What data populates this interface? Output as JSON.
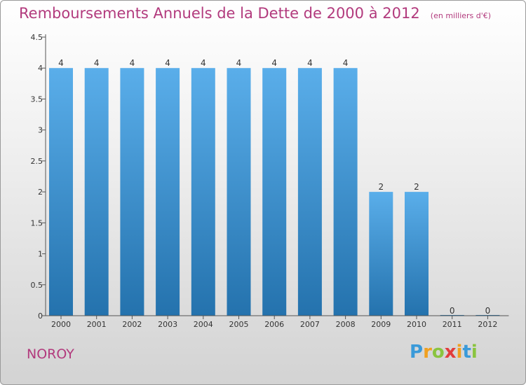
{
  "chart_title": "Remboursements Annuels de la Dette de 2000 à 2012",
  "chart_subtitle": "(en milliers d'€)",
  "commune": "NOROY",
  "logo": {
    "letters": [
      "P",
      "r",
      "o",
      "x",
      "i",
      "t",
      "i"
    ],
    "colors": [
      "#3a9ad9",
      "#f0a020",
      "#8ac43f",
      "#e23c3c",
      "#f0a020",
      "#3a9ad9",
      "#8ac43f"
    ]
  },
  "colors": {
    "title": "#b23a7d",
    "bar_top": "#5aaeea",
    "bar_bottom": "#2472ad"
  },
  "chart_data": {
    "type": "bar",
    "title": "Remboursements Annuels de la Dette de 2000 à 2012",
    "subtitle": "(en milliers d'€)",
    "xlabel": "",
    "ylabel": "",
    "categories": [
      "2000",
      "2001",
      "2002",
      "2003",
      "2004",
      "2005",
      "2006",
      "2007",
      "2008",
      "2009",
      "2010",
      "2011",
      "2012"
    ],
    "values": [
      4,
      4,
      4,
      4,
      4,
      4,
      4,
      4,
      4,
      2,
      2,
      0,
      0
    ],
    "data_labels": [
      "4",
      "4",
      "4",
      "4",
      "4",
      "4",
      "4",
      "4",
      "4",
      "2",
      "2",
      "0",
      "0"
    ],
    "ylim": [
      0,
      4.5
    ],
    "yticks": [
      0,
      0.5,
      1,
      1.5,
      2,
      2.5,
      3,
      3.5,
      4,
      4.5
    ],
    "ytick_labels": [
      "0",
      "0.5",
      "1",
      "1.5",
      "2",
      "2.5",
      "3",
      "3.5",
      "4",
      "4.5"
    ],
    "grid": false,
    "legend": "none"
  }
}
